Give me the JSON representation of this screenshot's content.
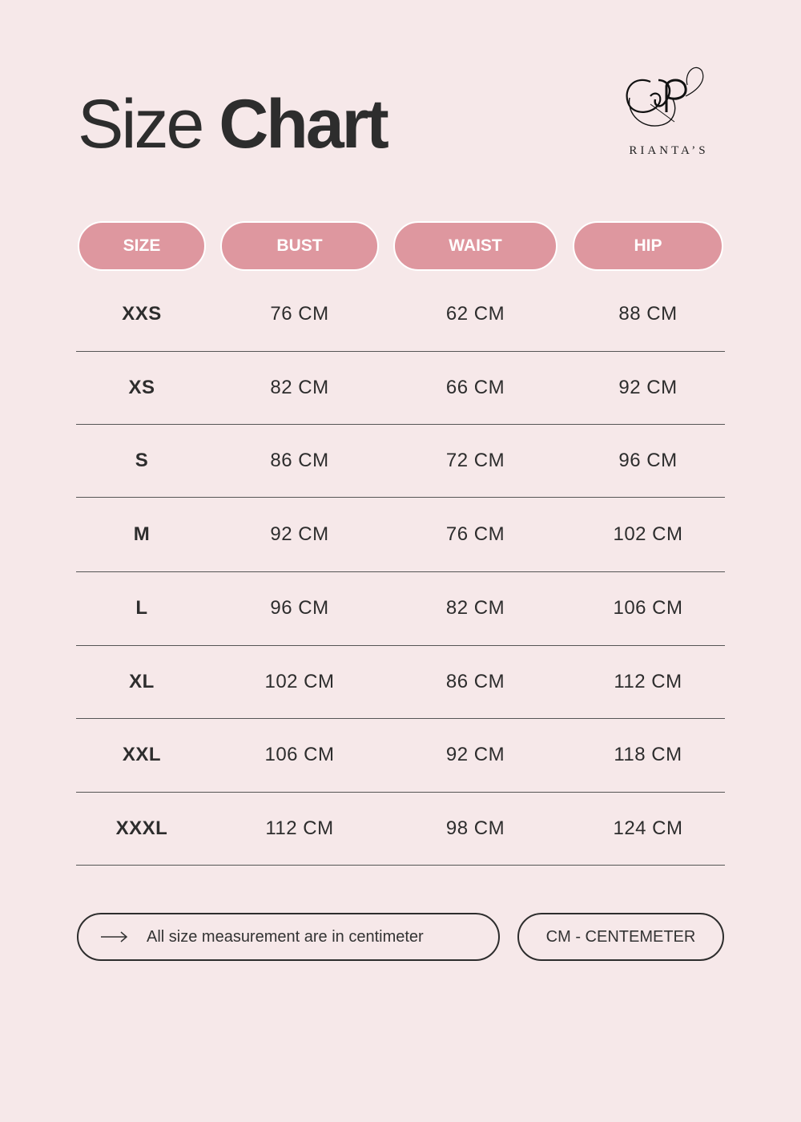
{
  "header": {
    "title_light": "Size",
    "title_bold": "Chart",
    "brand": "RIANTA’S"
  },
  "columns": [
    "SIZE",
    "BUST",
    "WAIST",
    "HIP"
  ],
  "rows": [
    [
      "XXS",
      "76 CM",
      "62 CM",
      "88 CM"
    ],
    [
      "XS",
      "82 CM",
      "66 CM",
      "92 CM"
    ],
    [
      "S",
      "86 CM",
      "72 CM",
      "96 CM"
    ],
    [
      "M",
      "92 CM",
      "76 CM",
      "102 CM"
    ],
    [
      "L",
      "96 CM",
      "82 CM",
      "106 CM"
    ],
    [
      "XL",
      "102 CM",
      "86 CM",
      "112 CM"
    ],
    [
      "XXL",
      "106 CM",
      "92 CM",
      "118 CM"
    ],
    [
      "XXXL",
      "112 CM",
      "98 CM",
      "124 CM"
    ]
  ],
  "footer": {
    "note": "All size measurement are in centimeter",
    "note_icon": "arrow-right-icon",
    "unit": "CM - CENTEMETER"
  },
  "colors": {
    "background": "#f6e8e9",
    "accent": "#de979f",
    "text": "#2d2d2d"
  }
}
